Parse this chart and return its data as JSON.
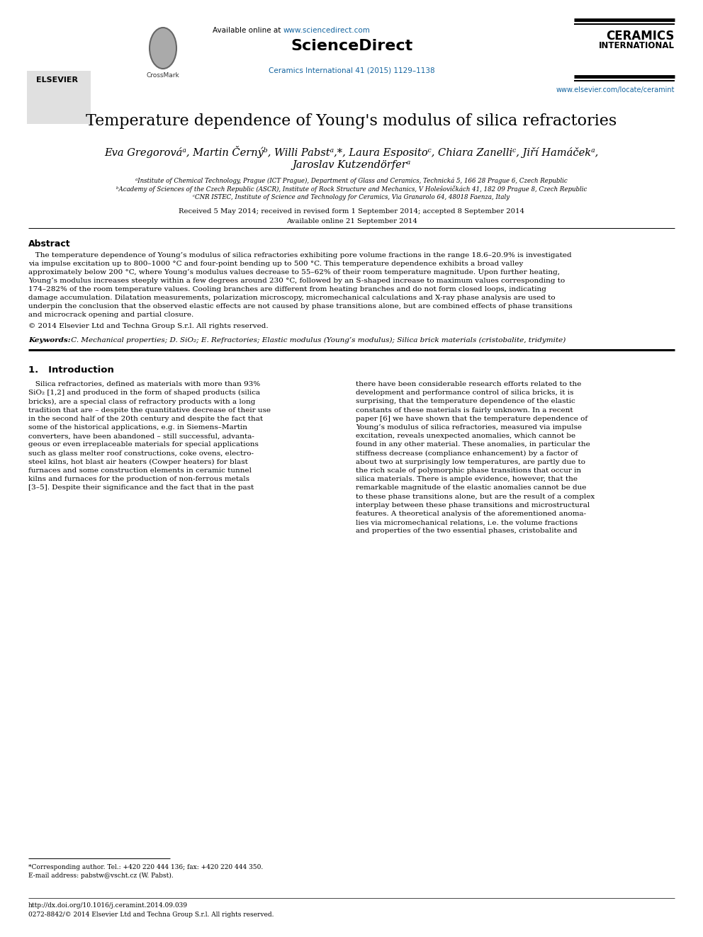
{
  "title": "Temperature dependence of Young's modulus of silica refractories",
  "authors_line1": "Eva Gregorováᵃ, Martin Černýᵇ, Willi Pabstᵃ,*, Laura Espositoᶜ, Chiara Zanelliᶜ, Jiří Hamáčekᵃ,",
  "authors_line2": "Jaroslav Kutzendörferᵃ",
  "affil_a": "ᵃInstitute of Chemical Technology, Prague (ICT Prague), Department of Glass and Ceramics, Technická 5, 166 28 Prague 6, Czech Republic",
  "affil_b": "ᵇAcademy of Sciences of the Czech Republic (ASCR), Institute of Rock Structure and Mechanics, V Holešovičkách 41, 182 09 Prague 8, Czech Republic",
  "affil_c": "ᶜCNR ISTEC, Institute of Science and Technology for Ceramics, Via Granarolo 64, 48018 Faenza, Italy",
  "received": "Received 5 May 2014; received in revised form 1 September 2014; accepted 8 September 2014",
  "available": "Available online 21 September 2014",
  "abstract_title": "Abstract",
  "copyright": "© 2014 Elsevier Ltd and Techna Group S.r.l. All rights reserved.",
  "keywords_label": "Keywords:",
  "keywords_text": " C. Mechanical properties; D. SiO₂; E. Refractories; Elastic modulus (Young’s modulus); Silica brick materials (cristobalite, tridymite)",
  "section1_title": "1.   Introduction",
  "footnote_star": "*Corresponding author. Tel.: +420 220 444 136; fax: +420 220 444 350.",
  "footnote_email": "E-mail address: pabstw@vscht.cz (W. Pabst).",
  "footer_doi": "http://dx.doi.org/10.1016/j.ceramint.2014.09.039",
  "footer_issn": "0272-8842/© 2014 Elsevier Ltd and Techna Group S.r.l. All rights reserved.",
  "header_journal": "Ceramics International 41 (2015) 1129–1138",
  "journal_url": "www.elsevier.com/locate/ceramint",
  "link_color": "#1565a0",
  "sciencedirect_blue": "#e87722",
  "bg_color": "#ffffff",
  "abstract_lines": [
    "   The temperature dependence of Young’s modulus of silica refractories exhibiting pore volume fractions in the range 18.6–20.9% is investigated",
    "via impulse excitation up to 800–1000 °C and four-point bending up to 500 °C. This temperature dependence exhibits a broad valley",
    "approximately below 200 °C, where Young’s modulus values decrease to 55–62% of their room temperature magnitude. Upon further heating,",
    "Young’s modulus increases steeply within a few degrees around 230 °C, followed by an S-shaped increase to maximum values corresponding to",
    "174–282% of the room temperature values. Cooling branches are different from heating branches and do not form closed loops, indicating",
    "damage accumulation. Dilatation measurements, polarization microscopy, micromechanical calculations and X-ray phase analysis are used to",
    "underpin the conclusion that the observed elastic effects are not caused by phase transitions alone, but are combined effects of phase transitions",
    "and microcrack opening and partial closure."
  ],
  "left_col_lines": [
    "   Silica refractories, defined as materials with more than 93%",
    "SiO₂ [1,2] and produced in the form of shaped products (silica",
    "bricks), are a special class of refractory products with a long",
    "tradition that are – despite the quantitative decrease of their use",
    "in the second half of the 20th century and despite the fact that",
    "some of the historical applications, e.g. in Siemens–Martin",
    "converters, have been abandoned – still successful, advanta-",
    "geous or even irreplaceable materials for special applications",
    "such as glass melter roof constructions, coke ovens, electro-",
    "steel kilns, hot blast air heaters (Cowper heaters) for blast",
    "furnaces and some construction elements in ceramic tunnel",
    "kilns and furnaces for the production of non-ferrous metals",
    "[3–5]. Despite their significance and the fact that in the past"
  ],
  "right_col_lines": [
    "there have been considerable research efforts related to the",
    "development and performance control of silica bricks, it is",
    "surprising, that the temperature dependence of the elastic",
    "constants of these materials is fairly unknown. In a recent",
    "paper [6] we have shown that the temperature dependence of",
    "Young’s modulus of silica refractories, measured via impulse",
    "excitation, reveals unexpected anomalies, which cannot be",
    "found in any other material. These anomalies, in particular the",
    "stiffness decrease (compliance enhancement) by a factor of",
    "about two at surprisingly low temperatures, are partly due to",
    "the rich scale of polymorphic phase transitions that occur in",
    "silica materials. There is ample evidence, however, that the",
    "remarkable magnitude of the elastic anomalies cannot be due",
    "to these phase transitions alone, but are the result of a complex",
    "interplay between these phase transitions and microstructural",
    "features. A theoretical analysis of the aforementioned anoma-",
    "lies via micromechanical relations, i.e. the volume fractions",
    "and properties of the two essential phases, cristobalite and"
  ]
}
